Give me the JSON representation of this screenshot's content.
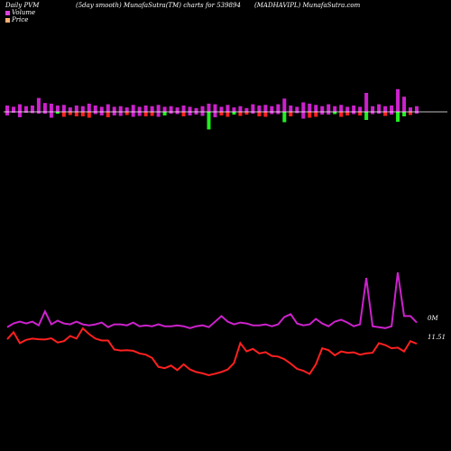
{
  "header": {
    "left": "Daily PVM",
    "middle": "(5day smooth) MunafaSutra(TM) charts for 539894",
    "right": "(MADHAVIPL) MunafaSutra.com"
  },
  "legend": [
    {
      "label": "Volume",
      "color": "#e040e0"
    },
    {
      "label": "Price",
      "color": "#ffb070"
    }
  ],
  "colors": {
    "background": "#000000",
    "volume_up": "#cc22cc",
    "volume_down": "#ff2222",
    "volume_spike": "#22ee22",
    "volume_line": "#cc22cc",
    "price_line": "#ff2020",
    "baseline": "#ffffff"
  },
  "chart_data": [
    {
      "type": "bar",
      "values": [
        1.0,
        0.8,
        1.2,
        0.9,
        1.0,
        2.2,
        1.4,
        1.3,
        1.0,
        1.1,
        0.7,
        1.0,
        0.9,
        1.3,
        1.0,
        0.8,
        1.2,
        0.8,
        0.9,
        0.7,
        1.1,
        0.8,
        1.0,
        0.9,
        1.1,
        0.8,
        0.9,
        0.7,
        1.0,
        0.8,
        0.6,
        0.9,
        1.3,
        1.2,
        0.8,
        1.1,
        0.7,
        0.9,
        0.6,
        1.2,
        1.0,
        1.1,
        0.9,
        1.2,
        2.1,
        1.0,
        0.8,
        1.5,
        1.3,
        1.1,
        0.9,
        1.2,
        0.9,
        1.1,
        0.8,
        1.0,
        0.8,
        3.0,
        0.9,
        1.2,
        0.9,
        1.0,
        3.6,
        2.4,
        0.7,
        0.9
      ],
      "directions": [
        "up",
        "up",
        "up",
        "up",
        "up",
        "up",
        "up",
        "up",
        "up",
        "down",
        "down",
        "down",
        "down",
        "down",
        "up",
        "up",
        "down",
        "up",
        "up",
        "down",
        "up",
        "up",
        "down",
        "down",
        "up",
        "up",
        "up",
        "up",
        "down",
        "up",
        "up",
        "up",
        "down",
        "up",
        "down",
        "down",
        "up",
        "down",
        "down",
        "up",
        "down",
        "down",
        "up",
        "up",
        "up",
        "down",
        "up",
        "up",
        "down",
        "down",
        "up",
        "up",
        "up",
        "down",
        "down",
        "up",
        "down",
        "up",
        "up",
        "up",
        "down",
        "up",
        "up",
        "up",
        "down",
        "up"
      ],
      "below": [
        0.8,
        0.2,
        1.2,
        0.2,
        0.3,
        0.4,
        0.4,
        1.3,
        0.4,
        1.1,
        0.7,
        1.0,
        1.0,
        1.3,
        0.5,
        0.8,
        1.2,
        0.8,
        0.9,
        0.7,
        1.1,
        0.9,
        1.0,
        0.9,
        1.1,
        0.8,
        0.4,
        0.5,
        1.0,
        0.8,
        0.6,
        0.9,
        3.9,
        1.2,
        0.8,
        1.1,
        0.6,
        0.9,
        0.6,
        0.4,
        1.0,
        1.1,
        0.5,
        0.5,
        2.3,
        1.0,
        0.3,
        1.5,
        1.3,
        1.1,
        0.6,
        0.6,
        0.5,
        1.1,
        0.8,
        0.5,
        0.8,
        1.8,
        0.5,
        0.4,
        0.9,
        0.6,
        2.2,
        1.0,
        0.7,
        0.4
      ],
      "spike_down": [
        false,
        false,
        false,
        false,
        false,
        false,
        false,
        false,
        true,
        false,
        false,
        false,
        false,
        false,
        false,
        false,
        false,
        false,
        false,
        false,
        false,
        false,
        false,
        false,
        false,
        true,
        false,
        false,
        false,
        false,
        false,
        false,
        true,
        false,
        false,
        false,
        true,
        false,
        false,
        false,
        false,
        false,
        false,
        false,
        true,
        false,
        false,
        false,
        false,
        false,
        false,
        false,
        true,
        false,
        false,
        false,
        false,
        true,
        false,
        false,
        false,
        false,
        true,
        true,
        false,
        false
      ]
    },
    {
      "type": "line",
      "name": "Volume",
      "values": [
        0.9,
        1.3,
        1.5,
        1.3,
        1.5,
        1.1,
        2.6,
        1.2,
        1.6,
        1.3,
        1.2,
        1.5,
        1.2,
        1.1,
        1.2,
        1.4,
        0.9,
        1.2,
        1.2,
        1.1,
        1.4,
        1.0,
        1.1,
        1.0,
        1.2,
        1.0,
        1.0,
        1.1,
        1.0,
        0.8,
        1.0,
        1.1,
        0.9,
        1.5,
        2.1,
        1.5,
        1.2,
        1.4,
        1.3,
        1.1,
        1.1,
        1.2,
        1.0,
        1.2,
        2.0,
        2.3,
        1.3,
        1.1,
        1.2,
        1.8,
        1.3,
        1.0,
        1.5,
        1.7,
        1.4,
        1.0,
        1.2,
        6.2,
        1.0,
        0.9,
        0.8,
        1.0,
        6.8,
        2.1,
        2.1,
        1.4
      ],
      "label": "0M"
    },
    {
      "type": "line",
      "name": "Price",
      "values": [
        12.4,
        12.95,
        12.1,
        12.35,
        12.45,
        12.4,
        12.38,
        12.48,
        12.15,
        12.25,
        12.65,
        12.45,
        13.25,
        12.8,
        12.45,
        12.3,
        12.3,
        11.6,
        11.52,
        11.55,
        11.5,
        11.3,
        11.2,
        10.95,
        10.25,
        10.15,
        10.35,
        10.0,
        10.45,
        10.05,
        9.85,
        9.75,
        9.6,
        9.72,
        9.85,
        10.05,
        10.55,
        12.1,
        11.45,
        11.65,
        11.3,
        11.4,
        11.1,
        11.05,
        10.85,
        10.5,
        10.1,
        9.95,
        9.7,
        10.45,
        11.7,
        11.55,
        11.15,
        11.45,
        11.35,
        11.38,
        11.2,
        11.3,
        11.35,
        12.1,
        11.95,
        11.7,
        11.75,
        11.45,
        12.25,
        12.05
      ],
      "label": "11.51"
    }
  ]
}
